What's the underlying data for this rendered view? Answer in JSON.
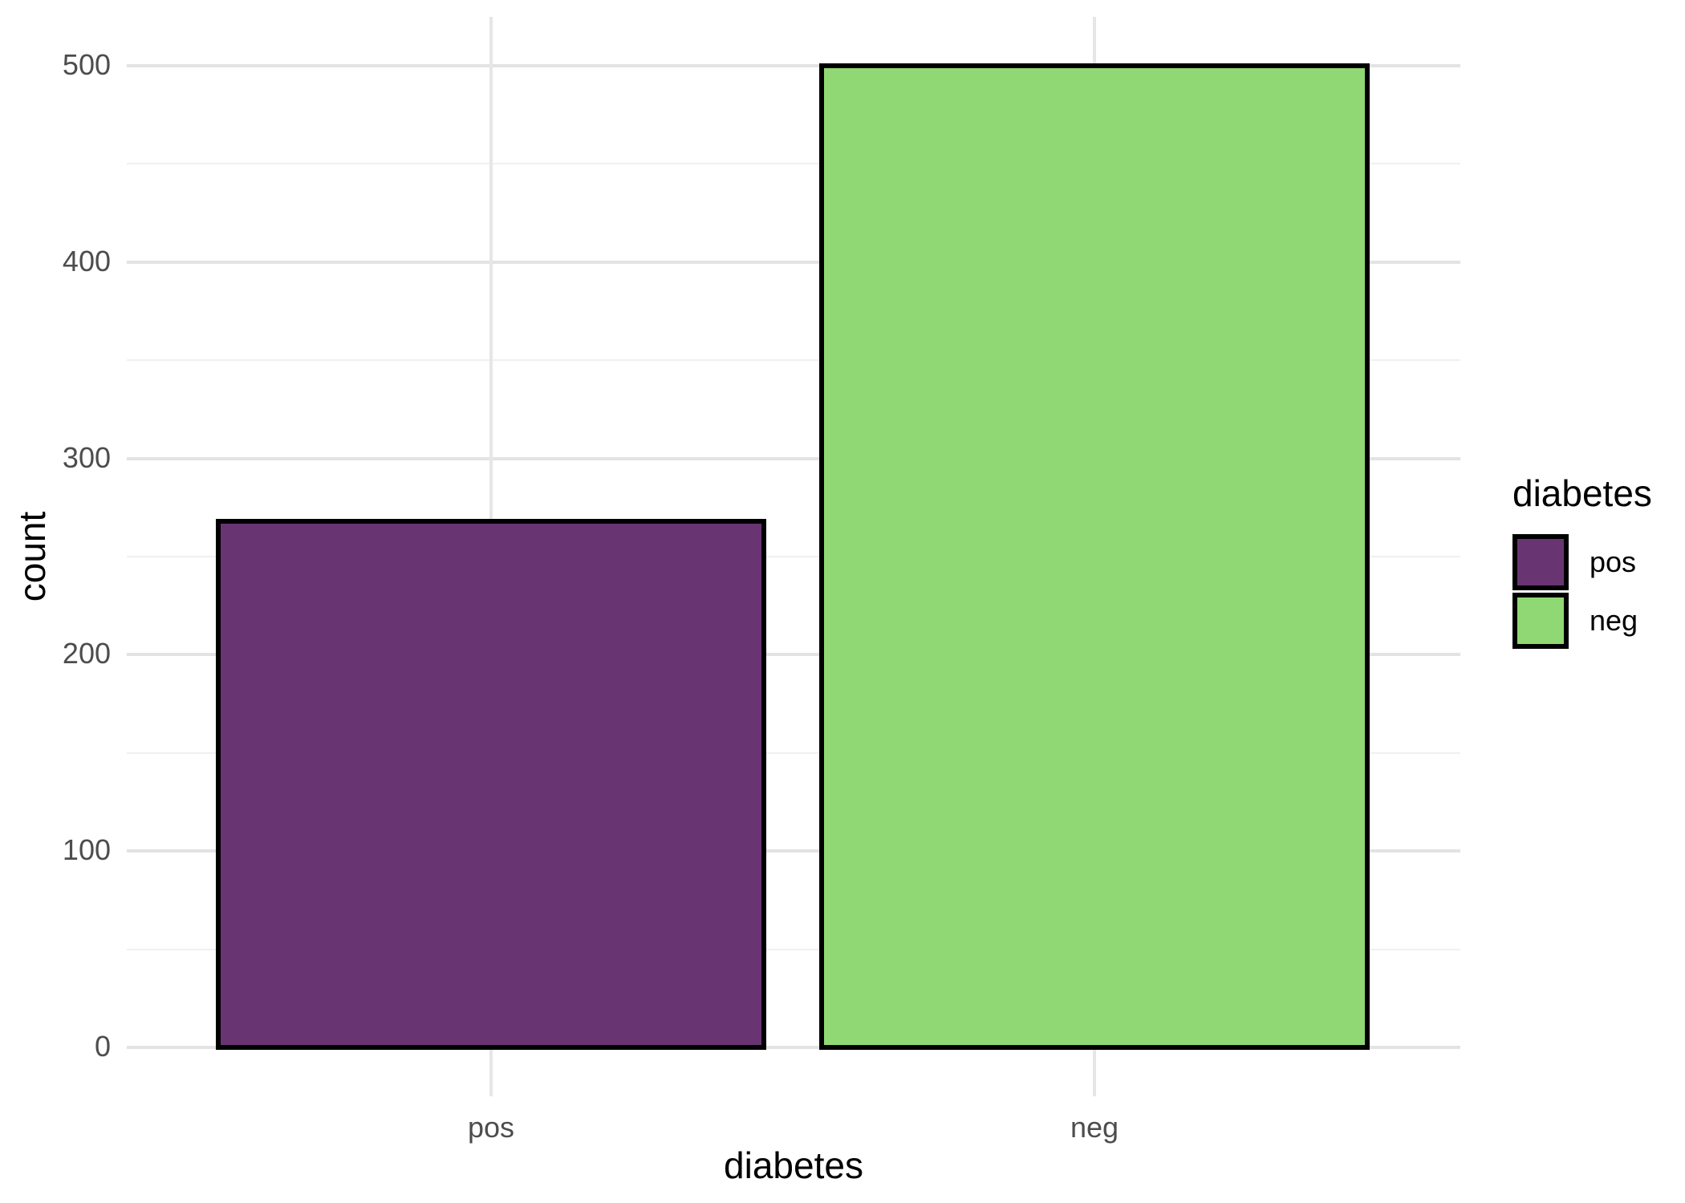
{
  "chart_data": {
    "type": "bar",
    "title": "",
    "xlabel": "diabetes",
    "ylabel": "count",
    "categories": [
      "pos",
      "neg"
    ],
    "values": [
      268,
      500
    ],
    "series": [
      {
        "name": "pos",
        "value": 268,
        "color": "#683572"
      },
      {
        "name": "neg",
        "value": 500,
        "color": "#90d873"
      }
    ],
    "bar_edge_color": "#000000",
    "ylim": [
      0,
      500
    ],
    "yticks": [
      0,
      100,
      200,
      300,
      400,
      500
    ],
    "yticks_minor": [
      50,
      150,
      250,
      350,
      450
    ],
    "grid": "horizontal major+minor, vertical major per category",
    "background": "#ffffff",
    "axis_text_color": "#4d4d4d",
    "axis_title_color": "#000000",
    "legend": {
      "title": "diabetes",
      "position": "right",
      "entries": [
        {
          "label": "pos",
          "color": "#683572"
        },
        {
          "label": "neg",
          "color": "#90d873"
        }
      ]
    }
  }
}
